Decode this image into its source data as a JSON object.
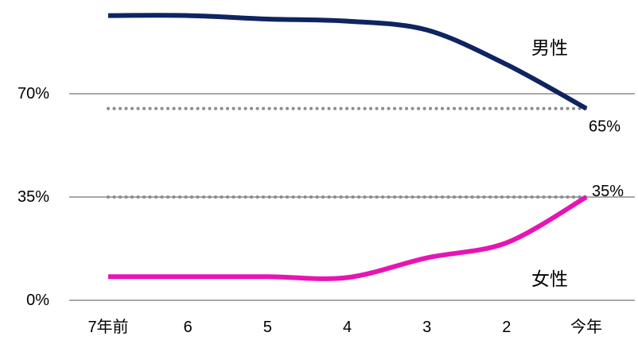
{
  "chart_data": {
    "type": "line",
    "categories": [
      "7年前",
      "6",
      "5",
      "4",
      "3",
      "2",
      "今年"
    ],
    "y_ticks": [
      "0%",
      "35%",
      "70%"
    ],
    "ylim": [
      0,
      100
    ],
    "grid": true,
    "series": [
      {
        "name": "男性",
        "values": [
          96.5,
          96.5,
          95.3,
          94.6,
          91.6,
          79.9,
          65
        ],
        "color": "#0f2460",
        "end_label": "65%"
      },
      {
        "name": "女性",
        "values": [
          8,
          8,
          8,
          7.7,
          14.4,
          19.5,
          35
        ],
        "color": "#e714b4",
        "end_label": "35%"
      }
    ],
    "reference_lines": [
      65,
      35
    ],
    "reference_line_color": "#8c8c8c",
    "gridline_color": "#8c8c8c"
  }
}
